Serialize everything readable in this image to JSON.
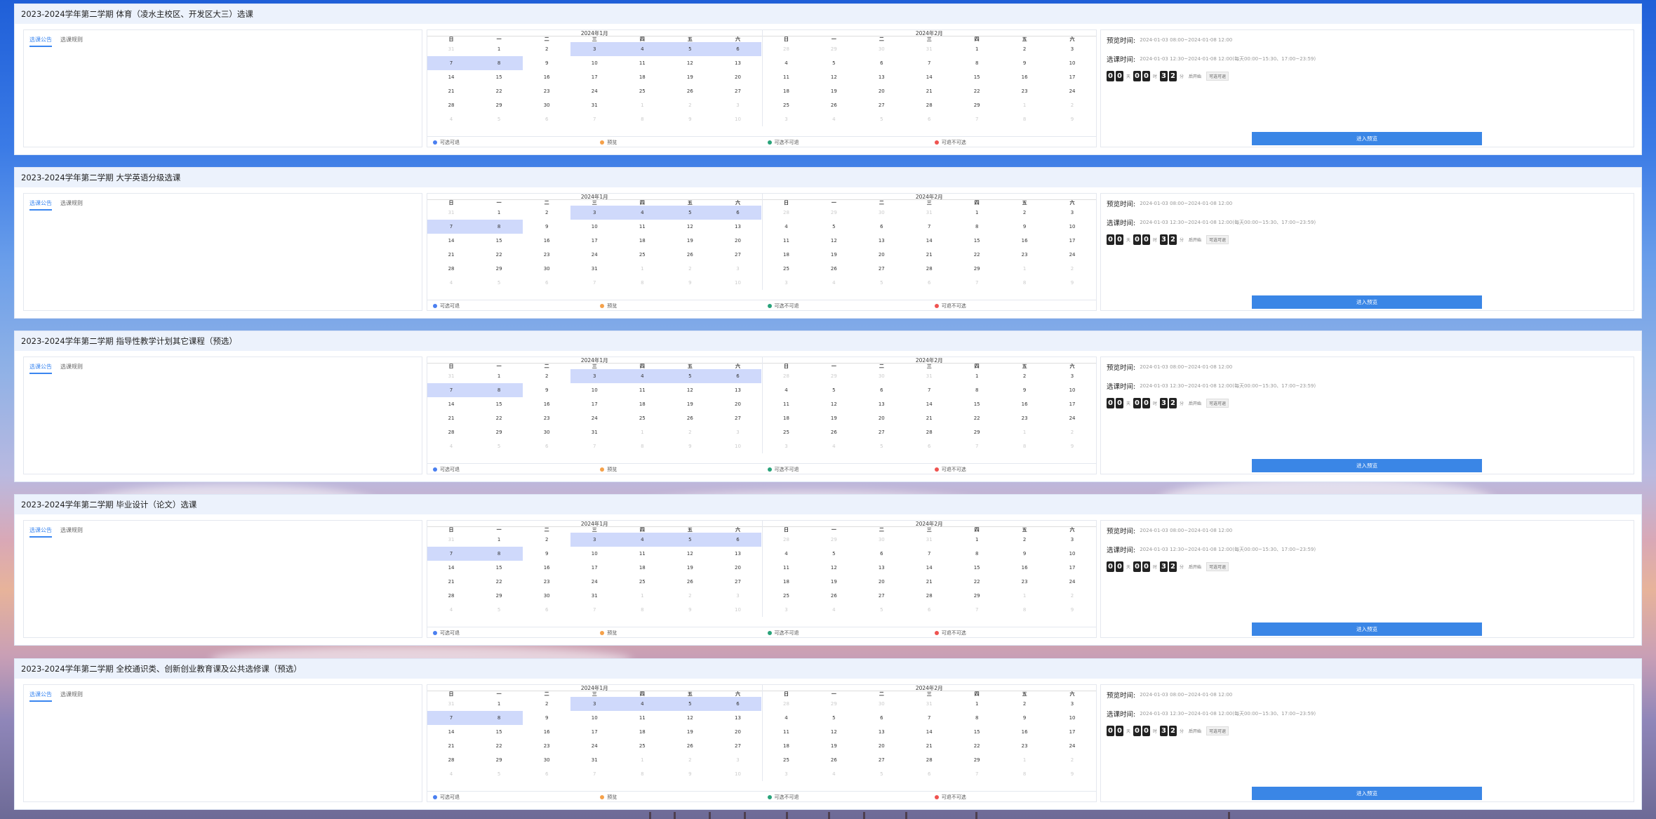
{
  "tabs": {
    "notice": "选课公告",
    "rules": "选课规则"
  },
  "weekdays": [
    "日",
    "一",
    "二",
    "三",
    "四",
    "五",
    "六"
  ],
  "months": [
    {
      "title": "2024年1月",
      "weeks": [
        [
          {
            "d": "31",
            "dim": true
          },
          {
            "d": "1"
          },
          {
            "d": "2"
          },
          {
            "d": "3",
            "hl": true
          },
          {
            "d": "4",
            "hl": true
          },
          {
            "d": "5",
            "hl": true
          },
          {
            "d": "6",
            "hl": true
          }
        ],
        [
          {
            "d": "7",
            "hl": true
          },
          {
            "d": "8",
            "hl": true
          },
          {
            "d": "9"
          },
          {
            "d": "10"
          },
          {
            "d": "11"
          },
          {
            "d": "12"
          },
          {
            "d": "13"
          }
        ],
        [
          {
            "d": "14"
          },
          {
            "d": "15"
          },
          {
            "d": "16"
          },
          {
            "d": "17"
          },
          {
            "d": "18"
          },
          {
            "d": "19"
          },
          {
            "d": "20"
          }
        ],
        [
          {
            "d": "21"
          },
          {
            "d": "22"
          },
          {
            "d": "23"
          },
          {
            "d": "24"
          },
          {
            "d": "25"
          },
          {
            "d": "26"
          },
          {
            "d": "27"
          }
        ],
        [
          {
            "d": "28"
          },
          {
            "d": "29"
          },
          {
            "d": "30"
          },
          {
            "d": "31"
          },
          {
            "d": "1",
            "dim": true
          },
          {
            "d": "2",
            "dim": true
          },
          {
            "d": "3",
            "dim": true
          }
        ],
        [
          {
            "d": "4",
            "dim": true
          },
          {
            "d": "5",
            "dim": true
          },
          {
            "d": "6",
            "dim": true
          },
          {
            "d": "7",
            "dim": true
          },
          {
            "d": "8",
            "dim": true
          },
          {
            "d": "9",
            "dim": true
          },
          {
            "d": "10",
            "dim": true
          }
        ]
      ]
    },
    {
      "title": "2024年2月",
      "weeks": [
        [
          {
            "d": "28",
            "dim": true
          },
          {
            "d": "29",
            "dim": true
          },
          {
            "d": "30",
            "dim": true
          },
          {
            "d": "31",
            "dim": true
          },
          {
            "d": "1"
          },
          {
            "d": "2"
          },
          {
            "d": "3"
          }
        ],
        [
          {
            "d": "4"
          },
          {
            "d": "5"
          },
          {
            "d": "6"
          },
          {
            "d": "7"
          },
          {
            "d": "8"
          },
          {
            "d": "9"
          },
          {
            "d": "10"
          }
        ],
        [
          {
            "d": "11"
          },
          {
            "d": "12"
          },
          {
            "d": "13"
          },
          {
            "d": "14"
          },
          {
            "d": "15"
          },
          {
            "d": "16"
          },
          {
            "d": "17"
          }
        ],
        [
          {
            "d": "18"
          },
          {
            "d": "19"
          },
          {
            "d": "20"
          },
          {
            "d": "21"
          },
          {
            "d": "22"
          },
          {
            "d": "23"
          },
          {
            "d": "24"
          }
        ],
        [
          {
            "d": "25"
          },
          {
            "d": "26"
          },
          {
            "d": "27"
          },
          {
            "d": "28"
          },
          {
            "d": "29"
          },
          {
            "d": "1",
            "dim": true
          },
          {
            "d": "2",
            "dim": true
          }
        ],
        [
          {
            "d": "3",
            "dim": true
          },
          {
            "d": "4",
            "dim": true
          },
          {
            "d": "5",
            "dim": true
          },
          {
            "d": "6",
            "dim": true
          },
          {
            "d": "7",
            "dim": true
          },
          {
            "d": "8",
            "dim": true
          },
          {
            "d": "9",
            "dim": true
          }
        ]
      ]
    }
  ],
  "legend": [
    {
      "label": "可选可退",
      "color": "#4a7ff0"
    },
    {
      "label": "预览",
      "color": "#f5a14a"
    },
    {
      "label": "可选不可退",
      "color": "#29a37a"
    },
    {
      "label": "可退不可选",
      "color": "#ef5350"
    }
  ],
  "info": {
    "preview_label": "预览时间:",
    "preview_value": "2024-01-03 08:00~2024-01-08 12:00",
    "select_label": "选课时间:",
    "select_value": "2024-01-03 12:30~2024-01-08 12:00(每天00:00~15:30、17:00~23:59)",
    "countdown": {
      "days": [
        "0",
        "0"
      ],
      "hours": [
        "0",
        "0"
      ],
      "minutes": [
        "3",
        "2"
      ],
      "d_unit": "天",
      "h_unit": "时",
      "m_unit": "分",
      "suffix": "后开始",
      "tag": "可选可退"
    },
    "enter_label": "进入预览"
  },
  "panels": [
    {
      "title": "2023-2024学年第二学期 体育（凌水主校区、开发区大三）选课"
    },
    {
      "title": "2023-2024学年第二学期 大学英语分级选课"
    },
    {
      "title": "2023-2024学年第二学期 指导性教学计划其它课程（预选）"
    },
    {
      "title": "2023-2024学年第二学期 毕业设计（论文）选课"
    },
    {
      "title": "2023-2024学年第二学期 全校通识类、创新创业教育课及公共选修课（预选）"
    }
  ],
  "colors": {
    "accent": "#3a86e6",
    "highlight": "#cfd9fb",
    "header_bg": "#ecf2fc"
  }
}
